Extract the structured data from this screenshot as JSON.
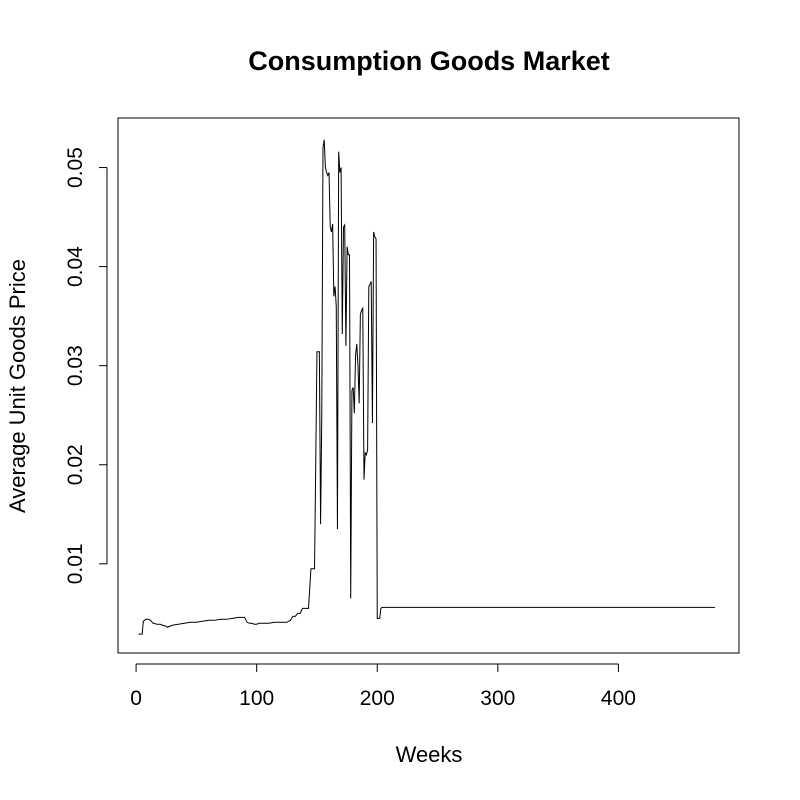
{
  "chart_data": {
    "type": "line",
    "title": "Consumption Goods Market",
    "xlabel": "Weeks",
    "ylabel": "Average Unit Goods Price",
    "xlim": [
      -15,
      500
    ],
    "ylim": [
      0.001,
      0.055
    ],
    "xticks": [
      0,
      100,
      200,
      300,
      400
    ],
    "xtick_labels": [
      "0",
      "100",
      "200",
      "300",
      "400"
    ],
    "yticks": [
      0.01,
      0.02,
      0.03,
      0.04,
      0.05
    ],
    "ytick_labels": [
      "0.01",
      "0.02",
      "0.03",
      "0.04",
      "0.05"
    ],
    "grid": false,
    "legend": "none",
    "line_color": "#000000",
    "series": [
      {
        "x": [
          2,
          5,
          6,
          8,
          10,
          12,
          14,
          15,
          17,
          20,
          22,
          25,
          26,
          28,
          30,
          35,
          40,
          45,
          50,
          55,
          60,
          65,
          70,
          75,
          80,
          85,
          88,
          90,
          92,
          94,
          96,
          98,
          100,
          102,
          105,
          110,
          115,
          120,
          125,
          128,
          130,
          132,
          134,
          136,
          138,
          140,
          142,
          143,
          145,
          146,
          148,
          150,
          152,
          153,
          154,
          155,
          156,
          157,
          158,
          159,
          160,
          161,
          162,
          163,
          164,
          165,
          166,
          167,
          168,
          169,
          170,
          171,
          172,
          173,
          174,
          175,
          176,
          177,
          178,
          179,
          180,
          181,
          182,
          183,
          184,
          185,
          186,
          187,
          188,
          189,
          190,
          191,
          192,
          193,
          194,
          195,
          196,
          197,
          198,
          199,
          200,
          201,
          202,
          203,
          204,
          205,
          206,
          207,
          208,
          209,
          210,
          250,
          300,
          350,
          400,
          450,
          480
        ],
        "y": [
          0.0029,
          0.0029,
          0.0042,
          0.0044,
          0.0044,
          0.0043,
          0.004,
          0.004,
          0.0039,
          0.0039,
          0.0038,
          0.0037,
          0.0036,
          0.0037,
          0.0038,
          0.0039,
          0.004,
          0.0041,
          0.0041,
          0.0042,
          0.0043,
          0.0043,
          0.0044,
          0.0044,
          0.0045,
          0.0046,
          0.0046,
          0.0046,
          0.0041,
          0.004,
          0.004,
          0.0039,
          0.0039,
          0.004,
          0.004,
          0.004,
          0.0041,
          0.0041,
          0.0041,
          0.0043,
          0.0047,
          0.0047,
          0.005,
          0.005,
          0.0055,
          0.0055,
          0.0055,
          0.0055,
          0.0095,
          0.0095,
          0.0095,
          0.0314,
          0.0314,
          0.014,
          0.025,
          0.052,
          0.0528,
          0.05,
          0.0495,
          0.0492,
          0.0495,
          0.044,
          0.0435,
          0.0443,
          0.037,
          0.038,
          0.036,
          0.0135,
          0.0516,
          0.0495,
          0.05,
          0.0332,
          0.044,
          0.0442,
          0.032,
          0.042,
          0.0412,
          0.0412,
          0.0065,
          0.0275,
          0.0278,
          0.0252,
          0.031,
          0.0322,
          0.03,
          0.0262,
          0.0352,
          0.0356,
          0.0358,
          0.0185,
          0.0212,
          0.021,
          0.0215,
          0.038,
          0.0382,
          0.0385,
          0.0242,
          0.0435,
          0.043,
          0.0428,
          0.0045,
          0.0045,
          0.0045,
          0.0055,
          0.0056,
          0.0056,
          0.0056,
          0.0056,
          0.0056,
          0.0056,
          0.0056,
          0.0056,
          0.0056,
          0.0056,
          0.0056,
          0.0056,
          0.0056
        ]
      }
    ]
  }
}
